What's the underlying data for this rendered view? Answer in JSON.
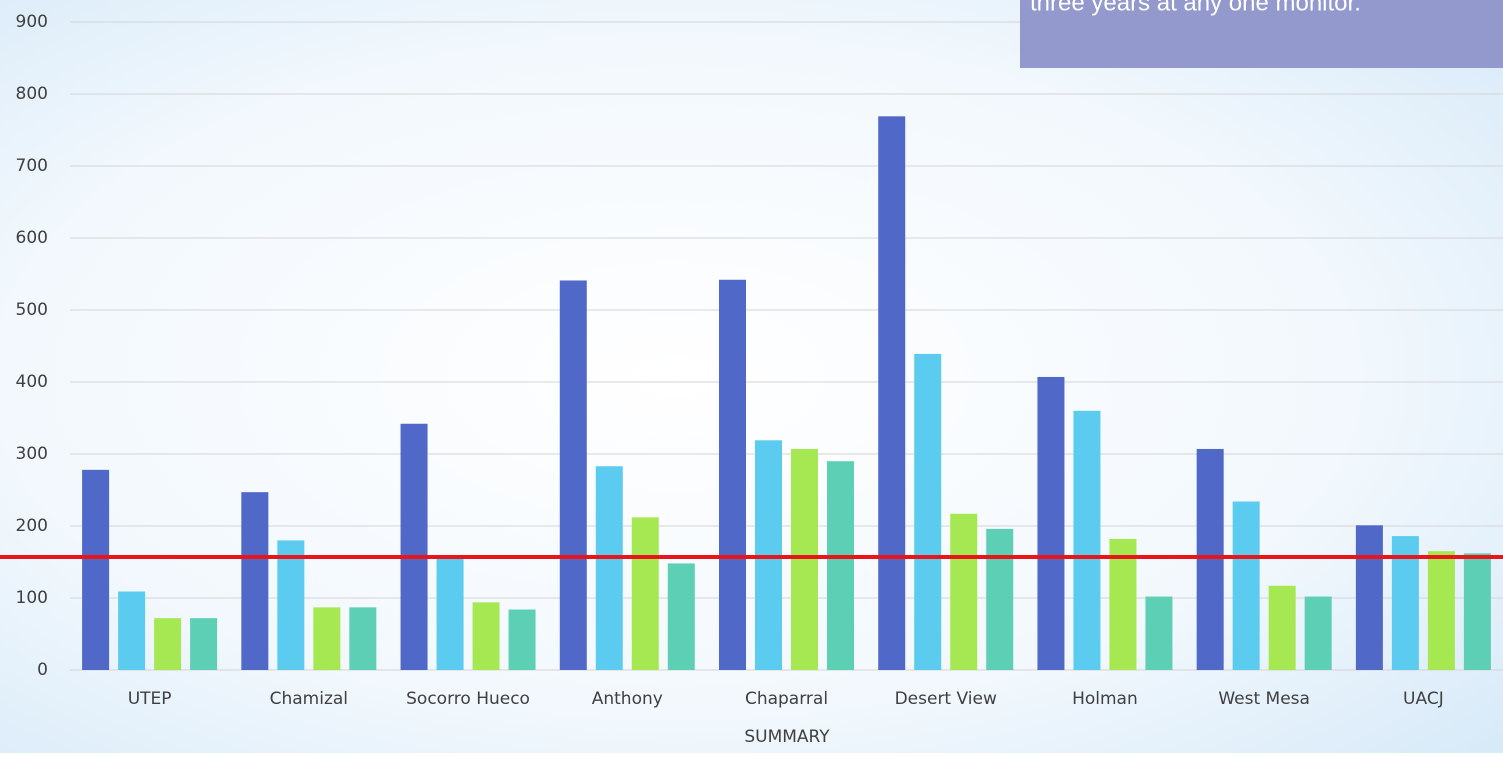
{
  "chart_data": {
    "type": "bar",
    "annotation": "three years at any one monitor.",
    "xlabel": "SUMMARY",
    "categories": [
      "UTEP",
      "Chamizal",
      "Socorro Hueco",
      "Anthony",
      "Chaparral",
      "Desert View",
      "Holman",
      "West Mesa",
      "UACJ"
    ],
    "series": [
      {
        "color": "#5068c8",
        "values": [
          278,
          247,
          342,
          541,
          542,
          769,
          407,
          307,
          201
        ]
      },
      {
        "color": "#5bcbf0",
        "values": [
          109,
          180,
          157,
          283,
          319,
          439,
          360,
          234,
          186
        ]
      },
      {
        "color": "#a6e851",
        "values": [
          72,
          87,
          94,
          212,
          307,
          217,
          182,
          117,
          165
        ]
      },
      {
        "color": "#5ccfb4",
        "values": [
          72,
          87,
          84,
          148,
          290,
          196,
          102,
          102,
          162
        ]
      }
    ],
    "reference_line": {
      "value": 157,
      "color": "#e8151b"
    },
    "ylim": [
      0,
      900
    ],
    "yticks": [
      0,
      100,
      200,
      300,
      400,
      500,
      600,
      700,
      800,
      900
    ],
    "grid": true
  }
}
